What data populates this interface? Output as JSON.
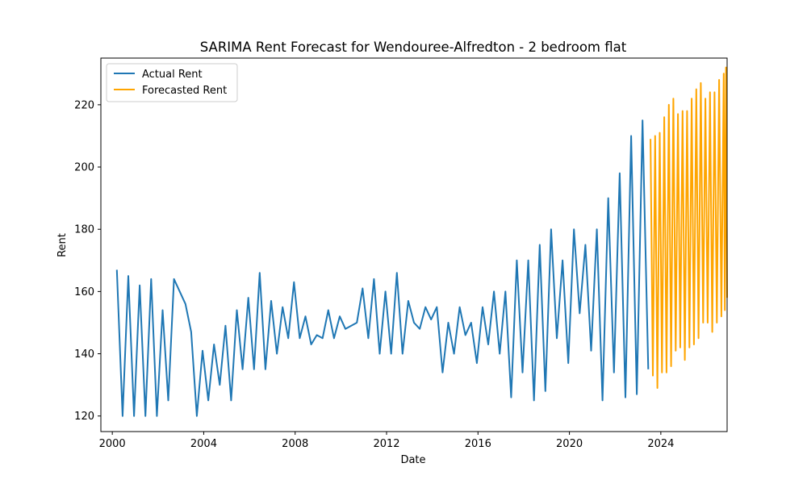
{
  "chart_data": {
    "type": "line",
    "title": "SARIMA Rent Forecast for Wendouree-Alfredton - 2 bedroom flat",
    "xlabel": "Date",
    "ylabel": "Rent",
    "xlim": [
      1999.5,
      2026.9
    ],
    "ylim": [
      115,
      235
    ],
    "x_ticks": [
      2000,
      2004,
      2008,
      2012,
      2016,
      2020,
      2024
    ],
    "y_ticks": [
      120,
      140,
      160,
      180,
      200,
      220
    ],
    "grid": false,
    "legend_position": "upper-left",
    "series": [
      {
        "name": "Actual Rent",
        "color": "#1f77b4",
        "points": [
          [
            2000.2,
            167
          ],
          [
            2000.45,
            120
          ],
          [
            2000.7,
            165
          ],
          [
            2000.95,
            120
          ],
          [
            2001.2,
            162
          ],
          [
            2001.45,
            120
          ],
          [
            2001.7,
            164
          ],
          [
            2001.95,
            120
          ],
          [
            2002.2,
            154
          ],
          [
            2002.45,
            125
          ],
          [
            2002.7,
            164
          ],
          [
            2003.2,
            156
          ],
          [
            2003.45,
            147
          ],
          [
            2003.7,
            120
          ],
          [
            2003.95,
            141
          ],
          [
            2004.2,
            125
          ],
          [
            2004.45,
            143
          ],
          [
            2004.7,
            130
          ],
          [
            2004.95,
            149
          ],
          [
            2005.2,
            125
          ],
          [
            2005.45,
            154
          ],
          [
            2005.7,
            135
          ],
          [
            2005.95,
            158
          ],
          [
            2006.2,
            135
          ],
          [
            2006.45,
            166
          ],
          [
            2006.7,
            135
          ],
          [
            2006.95,
            157
          ],
          [
            2007.2,
            140
          ],
          [
            2007.45,
            155
          ],
          [
            2007.7,
            145
          ],
          [
            2007.95,
            163
          ],
          [
            2008.2,
            145
          ],
          [
            2008.45,
            152
          ],
          [
            2008.7,
            143
          ],
          [
            2008.95,
            146
          ],
          [
            2009.2,
            145
          ],
          [
            2009.45,
            154
          ],
          [
            2009.7,
            145
          ],
          [
            2009.95,
            152
          ],
          [
            2010.2,
            148
          ],
          [
            2010.7,
            150
          ],
          [
            2010.95,
            161
          ],
          [
            2011.2,
            145
          ],
          [
            2011.45,
            164
          ],
          [
            2011.7,
            140
          ],
          [
            2011.95,
            160
          ],
          [
            2012.2,
            140
          ],
          [
            2012.45,
            166
          ],
          [
            2012.7,
            140
          ],
          [
            2012.95,
            157
          ],
          [
            2013.2,
            150
          ],
          [
            2013.45,
            148
          ],
          [
            2013.7,
            155
          ],
          [
            2013.95,
            151
          ],
          [
            2014.2,
            155
          ],
          [
            2014.45,
            134
          ],
          [
            2014.7,
            150
          ],
          [
            2014.95,
            140
          ],
          [
            2015.2,
            155
          ],
          [
            2015.45,
            146
          ],
          [
            2015.7,
            150
          ],
          [
            2015.95,
            137
          ],
          [
            2016.2,
            155
          ],
          [
            2016.45,
            143
          ],
          [
            2016.7,
            160
          ],
          [
            2016.95,
            140
          ],
          [
            2017.2,
            160
          ],
          [
            2017.45,
            126
          ],
          [
            2017.7,
            170
          ],
          [
            2017.95,
            134
          ],
          [
            2018.2,
            170
          ],
          [
            2018.45,
            125
          ],
          [
            2018.7,
            175
          ],
          [
            2018.95,
            128
          ],
          [
            2019.2,
            180
          ],
          [
            2019.45,
            145
          ],
          [
            2019.7,
            170
          ],
          [
            2019.95,
            137
          ],
          [
            2020.2,
            180
          ],
          [
            2020.45,
            153
          ],
          [
            2020.7,
            175
          ],
          [
            2020.95,
            141
          ],
          [
            2021.2,
            180
          ],
          [
            2021.45,
            125
          ],
          [
            2021.7,
            190
          ],
          [
            2021.95,
            134
          ],
          [
            2022.2,
            198
          ],
          [
            2022.45,
            126
          ],
          [
            2022.7,
            210
          ],
          [
            2022.95,
            127
          ],
          [
            2023.2,
            215
          ],
          [
            2023.45,
            135
          ]
        ]
      },
      {
        "name": "Forecasted Rent",
        "color": "#ffa500",
        "points": [
          [
            2023.55,
            209
          ],
          [
            2023.65,
            133
          ],
          [
            2023.75,
            210
          ],
          [
            2023.85,
            129
          ],
          [
            2023.95,
            211
          ],
          [
            2024.05,
            134
          ],
          [
            2024.15,
            216
          ],
          [
            2024.25,
            134
          ],
          [
            2024.35,
            220
          ],
          [
            2024.45,
            136
          ],
          [
            2024.55,
            222
          ],
          [
            2024.65,
            141
          ],
          [
            2024.75,
            217
          ],
          [
            2024.85,
            142
          ],
          [
            2024.95,
            218
          ],
          [
            2025.05,
            138
          ],
          [
            2025.15,
            218
          ],
          [
            2025.25,
            142
          ],
          [
            2025.35,
            222
          ],
          [
            2025.45,
            143
          ],
          [
            2025.55,
            225
          ],
          [
            2025.65,
            145
          ],
          [
            2025.75,
            227
          ],
          [
            2025.85,
            150
          ],
          [
            2025.95,
            222
          ],
          [
            2026.05,
            150
          ],
          [
            2026.15,
            224
          ],
          [
            2026.25,
            147
          ],
          [
            2026.35,
            224
          ],
          [
            2026.45,
            150
          ],
          [
            2026.55,
            228
          ],
          [
            2026.65,
            152
          ],
          [
            2026.75,
            230
          ],
          [
            2026.8,
            154
          ],
          [
            2026.85,
            232
          ],
          [
            2026.9,
            158
          ]
        ]
      }
    ]
  }
}
